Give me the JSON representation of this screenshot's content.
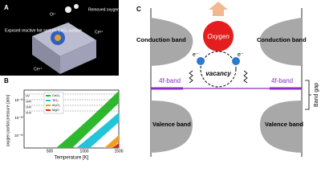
{
  "panel_a": {
    "label": "A",
    "ion_label": "O²⁻",
    "removed_label": "Removed oxygen ions",
    "hotspot_label": "Exposed reactive hot spot on CeO₂ surface",
    "ce3_label": "Ce³⁺",
    "ce4_label": "Ce⁴⁺"
  },
  "panel_b": {
    "label": "B",
    "y_label": "oxygen partial pressure [atm]",
    "x_label": "Temperature [K]",
    "xticks": [
      "500",
      "1000",
      "1500"
    ],
    "yticks": [
      "10⁻¹⁰",
      "10⁻³⁰",
      "10⁻⁵⁰"
    ],
    "levels": [
      "HV",
      "UHV",
      "UHV",
      "XHV"
    ],
    "legend": [
      {
        "name": "CeO₂",
        "color": "#2db82d"
      },
      {
        "name": "TiO₂",
        "color": "#22c5d8"
      },
      {
        "name": "Al₂O₃",
        "color": "#f0a020"
      },
      {
        "name": "MgO",
        "color": "#e02020"
      }
    ]
  },
  "panel_c": {
    "label": "C",
    "oxygen": "Oxygen",
    "vacancy": "vacancy",
    "electron_left": "e⁻",
    "electron_right": "e⁻",
    "conduction_left": "Conduction band",
    "conduction_right": "Conduction band",
    "f_band_left": "4f-band",
    "f_band_right": "4f-band",
    "valence_left": "Valence band",
    "valence_right": "Valence band",
    "band_gap": "Band gap"
  }
}
